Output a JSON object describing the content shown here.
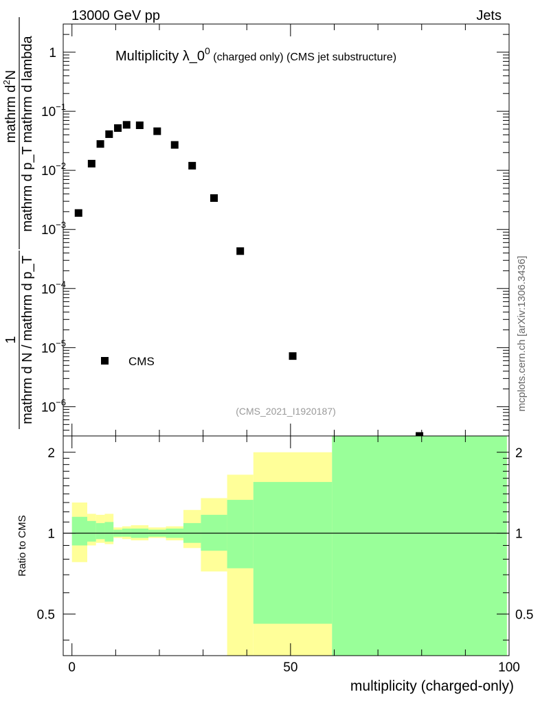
{
  "header": {
    "left": "13000 GeV pp",
    "right": "Jets"
  },
  "side_label": "mcplots.cern.ch [arXiv:1306.3436]",
  "colors": {
    "stat_band": "#99ff99",
    "total_band": "#ffff99",
    "marker": "#000000"
  },
  "chart_data": [
    {
      "type": "scatter",
      "title_main": "Multiplicity λ_0",
      "title_sup": "0",
      "title_sub": " (charged only) (CMS jet substructure)",
      "ylabel_top_numer": "mathrm d",
      "ylabel_top_numer_sup": "2",
      "ylabel_top_numer_tail": "N",
      "ylabel_top_denom": "mathrm d p_T mathrm d lambda",
      "ylabel_bot_numer": "1",
      "ylabel_bot_denom": "mathrm d N / mathrm d p_T",
      "yscale": "log",
      "xlim": [
        -2,
        100
      ],
      "ylim": [
        3.2e-07,
        3.0
      ],
      "y_ticks": [
        {
          "v": 1,
          "base": "1",
          "exp": ""
        },
        {
          "v": 0.1,
          "base": "10",
          "exp": "−1"
        },
        {
          "v": 0.01,
          "base": "10",
          "exp": "−2"
        },
        {
          "v": 0.001,
          "base": "10",
          "exp": "−3"
        },
        {
          "v": 0.0001,
          "base": "10",
          "exp": "−4"
        },
        {
          "v": 1e-05,
          "base": "10",
          "exp": "−5"
        },
        {
          "v": 1e-06,
          "base": "10",
          "exp": "−6"
        }
      ],
      "legend": {
        "placement": "bottom-left",
        "entries": [
          "CMS"
        ]
      },
      "watermark": "(CMS_2021_I1920187)",
      "series": [
        {
          "name": "CMS",
          "x": [
            1.5,
            4.5,
            6.5,
            8.5,
            10.5,
            12.5,
            15.5,
            19.5,
            23.5,
            27.5,
            32.5,
            38.5,
            50.5,
            79.5
          ],
          "y": [
            0.0019,
            0.013,
            0.028,
            0.041,
            0.052,
            0.059,
            0.058,
            0.046,
            0.027,
            0.012,
            0.0034,
            0.00043,
            7.2e-06,
            3.2e-07
          ]
        }
      ]
    },
    {
      "type": "area",
      "ylabel": "Ratio to CMS",
      "xlabel": "multiplicity (charged-only)",
      "xlim": [
        -2,
        100
      ],
      "ylim": [
        0.35,
        2.3
      ],
      "x_ticks": [
        0,
        50,
        100
      ],
      "y_ticks": [
        0.5,
        1,
        2
      ],
      "reference_line": 1,
      "bins": [
        {
          "x0": 0,
          "x1": 3.5,
          "stat": [
            0.9,
            1.15
          ],
          "total": [
            0.78,
            1.3
          ]
        },
        {
          "x0": 3.5,
          "x1": 5.5,
          "stat": [
            0.93,
            1.11
          ],
          "total": [
            0.9,
            1.18
          ]
        },
        {
          "x0": 5.5,
          "x1": 7.5,
          "stat": [
            0.95,
            1.09
          ],
          "total": [
            0.92,
            1.17
          ]
        },
        {
          "x0": 7.5,
          "x1": 9.5,
          "stat": [
            0.93,
            1.1
          ],
          "total": [
            0.91,
            1.18
          ]
        },
        {
          "x0": 9.5,
          "x1": 11.5,
          "stat": [
            0.97,
            1.03
          ],
          "total": [
            0.96,
            1.05
          ]
        },
        {
          "x0": 11.5,
          "x1": 13.5,
          "stat": [
            0.97,
            1.04
          ],
          "total": [
            0.95,
            1.06
          ]
        },
        {
          "x0": 13.5,
          "x1": 17.5,
          "stat": [
            0.96,
            1.04
          ],
          "total": [
            0.94,
            1.07
          ]
        },
        {
          "x0": 17.5,
          "x1": 21.5,
          "stat": [
            0.97,
            1.03
          ],
          "total": [
            0.96,
            1.05
          ]
        },
        {
          "x0": 21.5,
          "x1": 25.5,
          "stat": [
            0.96,
            1.04
          ],
          "total": [
            0.94,
            1.06
          ]
        },
        {
          "x0": 25.5,
          "x1": 29.5,
          "stat": [
            0.92,
            1.09
          ],
          "total": [
            0.88,
            1.22
          ]
        },
        {
          "x0": 29.5,
          "x1": 35.5,
          "stat": [
            0.86,
            1.17
          ],
          "total": [
            0.72,
            1.35
          ]
        },
        {
          "x0": 35.5,
          "x1": 41.5,
          "stat": [
            0.74,
            1.33
          ],
          "total": [
            0.3,
            1.65
          ]
        },
        {
          "x0": 41.5,
          "x1": 59.5,
          "stat": [
            0.46,
            1.55
          ],
          "total": [
            0.3,
            2.0
          ]
        },
        {
          "x0": 59.5,
          "x1": 99.5,
          "stat": [
            0.3,
            3.0
          ],
          "total": [
            0.3,
            3.0
          ]
        }
      ]
    }
  ]
}
